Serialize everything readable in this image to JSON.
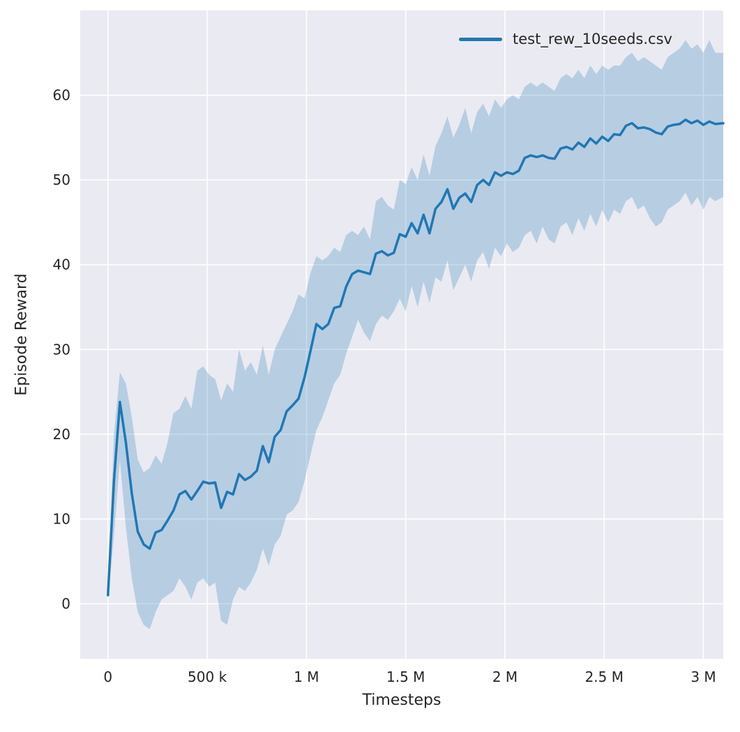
{
  "chart_data": {
    "type": "line",
    "title": "",
    "xlabel": "Timesteps",
    "ylabel": "Episode Reward",
    "legend": [
      "test_rew_10seeds.csv"
    ],
    "legend_position": "upper right",
    "grid": true,
    "x_units": "millions of timesteps",
    "xlim": [
      -0.14,
      3.1
    ],
    "ylim": [
      -6.5,
      70
    ],
    "xticks": {
      "values": [
        0,
        0.5,
        1,
        1.5,
        2,
        2.5,
        3
      ],
      "labels": [
        "0",
        "500 k",
        "1 M",
        "1.5 M",
        "2 M",
        "2.5 M",
        "3 M"
      ]
    },
    "yticks": {
      "values": [
        0,
        10,
        20,
        30,
        40,
        50,
        60
      ],
      "labels": [
        "0",
        "10",
        "20",
        "30",
        "40",
        "50",
        "60"
      ]
    },
    "colors": {
      "line": "#1f77b4",
      "band_alpha": 0.25,
      "plot_bg": "#eaeaf2",
      "grid": "#ffffff",
      "text": "#262626"
    },
    "x": [
      0,
      0.03,
      0.06,
      0.09,
      0.12,
      0.15,
      0.18,
      0.21,
      0.24,
      0.27,
      0.3,
      0.33,
      0.36,
      0.39,
      0.42,
      0.45,
      0.48,
      0.51,
      0.54,
      0.57,
      0.6,
      0.63,
      0.66,
      0.69,
      0.72,
      0.75,
      0.78,
      0.81,
      0.84,
      0.87,
      0.9,
      0.93,
      0.96,
      0.99,
      1.02,
      1.05,
      1.08,
      1.11,
      1.14,
      1.17,
      1.2,
      1.23,
      1.26,
      1.29,
      1.32,
      1.35,
      1.38,
      1.41,
      1.44,
      1.47,
      1.5,
      1.53,
      1.56,
      1.59,
      1.62,
      1.65,
      1.68,
      1.71,
      1.74,
      1.77,
      1.8,
      1.83,
      1.86,
      1.89,
      1.92,
      1.95,
      1.98,
      2.01,
      2.04,
      2.07,
      2.1,
      2.13,
      2.16,
      2.19,
      2.22,
      2.25,
      2.28,
      2.31,
      2.34,
      2.37,
      2.4,
      2.43,
      2.46,
      2.49,
      2.52,
      2.55,
      2.58,
      2.61,
      2.64,
      2.67,
      2.7,
      2.73,
      2.76,
      2.79,
      2.82,
      2.85,
      2.88,
      2.91,
      2.94,
      2.97,
      3.0,
      3.03,
      3.06,
      3.1
    ],
    "series": [
      {
        "name": "test_rew_10seeds.csv",
        "mean": [
          1.0,
          14.5,
          23.8,
          19.0,
          13.0,
          8.5,
          7.0,
          6.5,
          8.4,
          8.7,
          9.8,
          11.0,
          12.9,
          13.3,
          12.3,
          13.3,
          14.4,
          14.2,
          14.3,
          11.3,
          13.2,
          12.9,
          15.3,
          14.6,
          15.0,
          15.7,
          18.6,
          16.7,
          19.7,
          20.5,
          22.7,
          23.4,
          24.2,
          26.7,
          29.8,
          33.0,
          32.4,
          33.0,
          34.9,
          35.1,
          37.4,
          38.9,
          39.3,
          39.1,
          38.9,
          41.3,
          41.6,
          41.1,
          41.4,
          43.6,
          43.3,
          44.9,
          43.7,
          45.9,
          43.7,
          46.6,
          47.4,
          48.9,
          46.6,
          47.9,
          48.4,
          47.4,
          49.4,
          50.0,
          49.4,
          50.9,
          50.5,
          50.9,
          50.7,
          51.1,
          52.6,
          52.9,
          52.7,
          52.9,
          52.6,
          52.5,
          53.7,
          53.9,
          53.6,
          54.4,
          53.9,
          54.9,
          54.3,
          55.1,
          54.6,
          55.4,
          55.3,
          56.4,
          56.7,
          56.1,
          56.2,
          56.0,
          55.6,
          55.4,
          56.3,
          56.5,
          56.6,
          57.1,
          56.7,
          57.0,
          56.5,
          56.9,
          56.6,
          56.7
        ],
        "upper": [
          1.5,
          20.0,
          27.3,
          26.0,
          22.0,
          17.0,
          15.5,
          16.0,
          17.5,
          16.5,
          19.0,
          22.5,
          23.0,
          24.5,
          23.0,
          27.5,
          28.0,
          27.0,
          26.5,
          24.0,
          26.0,
          25.0,
          30.0,
          27.5,
          28.5,
          27.0,
          30.5,
          27.0,
          30.0,
          31.5,
          33.0,
          34.5,
          36.5,
          36.0,
          39.0,
          41.0,
          40.5,
          41.0,
          42.0,
          41.5,
          43.5,
          44.0,
          43.5,
          44.5,
          43.0,
          47.5,
          48.0,
          47.0,
          46.5,
          50.0,
          49.5,
          51.5,
          50.0,
          53.0,
          50.5,
          54.0,
          55.5,
          57.5,
          55.0,
          56.5,
          58.5,
          55.5,
          58.0,
          59.0,
          57.5,
          59.5,
          58.5,
          59.5,
          60.0,
          59.5,
          61.0,
          61.5,
          61.0,
          61.5,
          61.0,
          60.5,
          62.0,
          62.5,
          62.0,
          63.0,
          62.0,
          63.5,
          62.5,
          63.5,
          63.0,
          63.5,
          63.5,
          64.5,
          65.0,
          64.0,
          64.5,
          64.0,
          63.5,
          63.0,
          64.5,
          65.0,
          65.5,
          66.5,
          65.5,
          66.0,
          65.0,
          66.5,
          65.0,
          65.0
        ],
        "lower": [
          0.5,
          8.0,
          17.0,
          9.0,
          3.0,
          -1.0,
          -2.5,
          -3.0,
          -1.0,
          0.5,
          1.0,
          1.5,
          3.0,
          2.0,
          0.5,
          2.5,
          3.0,
          2.0,
          2.5,
          -2.0,
          -2.5,
          0.5,
          2.0,
          1.5,
          2.5,
          4.0,
          6.5,
          4.5,
          7.0,
          8.0,
          10.5,
          11.0,
          12.0,
          14.5,
          17.5,
          20.5,
          22.0,
          24.0,
          26.0,
          27.0,
          29.5,
          31.5,
          33.5,
          32.0,
          31.0,
          33.0,
          34.0,
          33.5,
          34.5,
          36.0,
          34.5,
          37.5,
          35.0,
          38.0,
          35.5,
          38.5,
          38.0,
          40.5,
          37.0,
          38.5,
          40.0,
          38.0,
          40.5,
          41.5,
          39.5,
          42.0,
          41.0,
          42.5,
          41.5,
          42.0,
          43.5,
          44.0,
          42.5,
          44.5,
          43.0,
          42.5,
          44.5,
          45.0,
          43.5,
          45.5,
          44.0,
          46.0,
          44.5,
          46.5,
          45.0,
          46.5,
          46.0,
          47.5,
          48.0,
          46.5,
          47.0,
          45.5,
          44.5,
          45.0,
          46.5,
          47.0,
          47.5,
          48.5,
          47.0,
          48.0,
          46.5,
          48.0,
          47.5,
          48.0
        ]
      }
    ]
  }
}
